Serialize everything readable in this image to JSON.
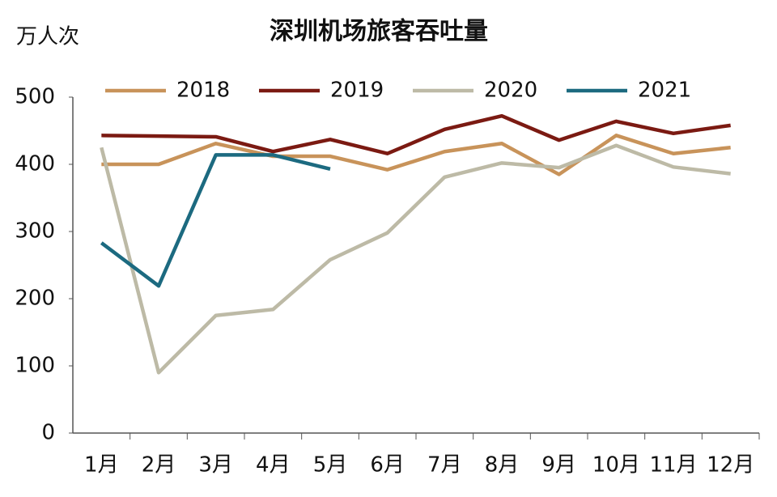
{
  "chart_data": {
    "type": "line",
    "title": "深圳机场旅客吞吐量",
    "y_label": "万人次",
    "categories": [
      "1月",
      "2月",
      "3月",
      "4月",
      "5月",
      "6月",
      "7月",
      "8月",
      "9月",
      "10月",
      "11月",
      "12月"
    ],
    "series": [
      {
        "name": "2018",
        "color": "#c8935a",
        "values": [
          400,
          400,
          431,
          412,
          412,
          392,
          419,
          431,
          385,
          443,
          416,
          425
        ]
      },
      {
        "name": "2019",
        "color": "#7b1a12",
        "values": [
          443,
          442,
          441,
          419,
          437,
          416,
          452,
          472,
          436,
          464,
          446,
          458
        ]
      },
      {
        "name": "2020",
        "color": "#bdbaa6",
        "values": [
          425,
          90,
          175,
          184,
          258,
          298,
          381,
          402,
          395,
          428,
          396,
          386
        ]
      },
      {
        "name": "2021",
        "color": "#1c6a80",
        "values": [
          283,
          219,
          414,
          414,
          393,
          null,
          null,
          null,
          null,
          null,
          null,
          null
        ]
      }
    ],
    "ylim": [
      0,
      500
    ],
    "yticks": [
      0,
      100,
      200,
      300,
      400,
      500
    ],
    "grid": false,
    "legend": "top"
  }
}
